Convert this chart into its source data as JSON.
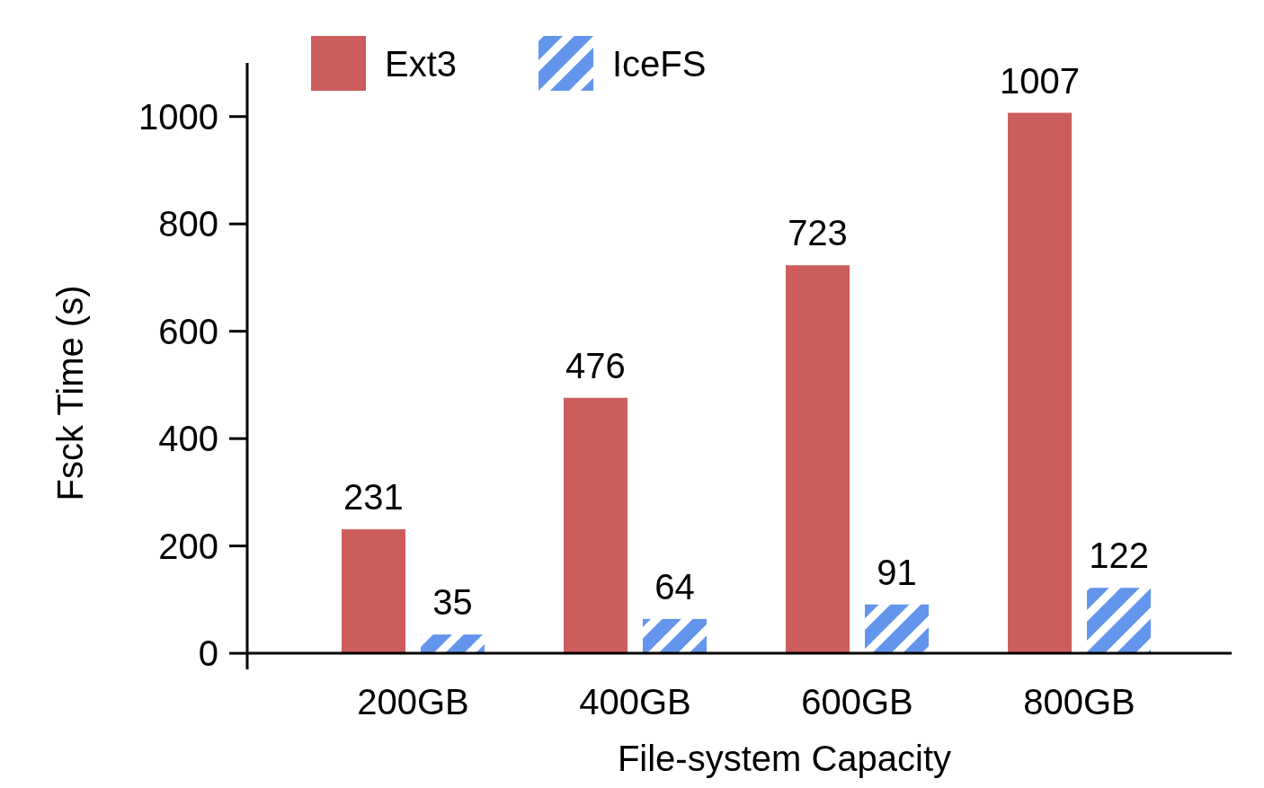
{
  "chart_data": {
    "type": "bar",
    "xlabel": "File-system Capacity",
    "ylabel": "Fsck Time (s)",
    "categories": [
      "200GB",
      "400GB",
      "600GB",
      "800GB"
    ],
    "series": [
      {
        "name": "Ext3",
        "color": "#cd5c5c",
        "values": [
          231,
          476,
          723,
          1007
        ]
      },
      {
        "name": "IceFS",
        "color": "#6495ed",
        "values": [
          35,
          64,
          91,
          122
        ]
      }
    ],
    "ylim": [
      -30,
      1100
    ],
    "yticks": [
      0,
      200,
      400,
      600,
      800,
      1000
    ],
    "data_labels": true,
    "legend": "top left",
    "grid": false
  }
}
